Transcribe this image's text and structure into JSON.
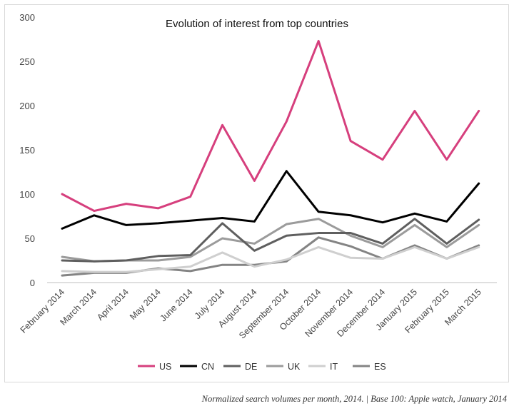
{
  "caption": "Normalized search volumes per month, 2014.  |  Base 100: Apple watch, January 2014",
  "chart_data": {
    "type": "line",
    "title": "Evolution of interest from top countries",
    "xlabel": "",
    "ylabel": "",
    "ylim": [
      0,
      300
    ],
    "yticks": [
      0,
      50,
      100,
      150,
      200,
      250,
      300
    ],
    "grid": false,
    "legend_position": "bottom",
    "categories": [
      "February 2014",
      "March 2014",
      "April 2014",
      "May 2014",
      "June 2014",
      "July 2014",
      "August 2014",
      "September 2014",
      "October 2014",
      "November 2014",
      "December 2014",
      "January 2015",
      "February 2015",
      "March 2015"
    ],
    "series": [
      {
        "name": "US",
        "color": "#d63f7d",
        "width": 3,
        "values": [
          100,
          81,
          89,
          84,
          97,
          178,
          115,
          182,
          273,
          160,
          139,
          194,
          139,
          194
        ]
      },
      {
        "name": "CN",
        "color": "#000000",
        "width": 3,
        "values": [
          61,
          76,
          65,
          67,
          70,
          73,
          69,
          126,
          80,
          76,
          68,
          78,
          69,
          112
        ]
      },
      {
        "name": "DE",
        "color": "#5f5f5f",
        "width": 3,
        "values": [
          25,
          24,
          25,
          30,
          31,
          67,
          36,
          53,
          56,
          56,
          44,
          72,
          44,
          71
        ]
      },
      {
        "name": "UK",
        "color": "#9b9b9b",
        "width": 3,
        "values": [
          29,
          24,
          25,
          25,
          29,
          50,
          44,
          66,
          72,
          53,
          40,
          65,
          40,
          65
        ]
      },
      {
        "name": "IT",
        "color": "#cfcfcf",
        "width": 3,
        "values": [
          13,
          12,
          12,
          15,
          18,
          34,
          18,
          26,
          40,
          28,
          27,
          40,
          27,
          40
        ]
      },
      {
        "name": "ES",
        "color": "#848484",
        "width": 3,
        "values": [
          8,
          11,
          11,
          16,
          13,
          20,
          20,
          24,
          51,
          41,
          27,
          42,
          27,
          42
        ]
      }
    ]
  }
}
